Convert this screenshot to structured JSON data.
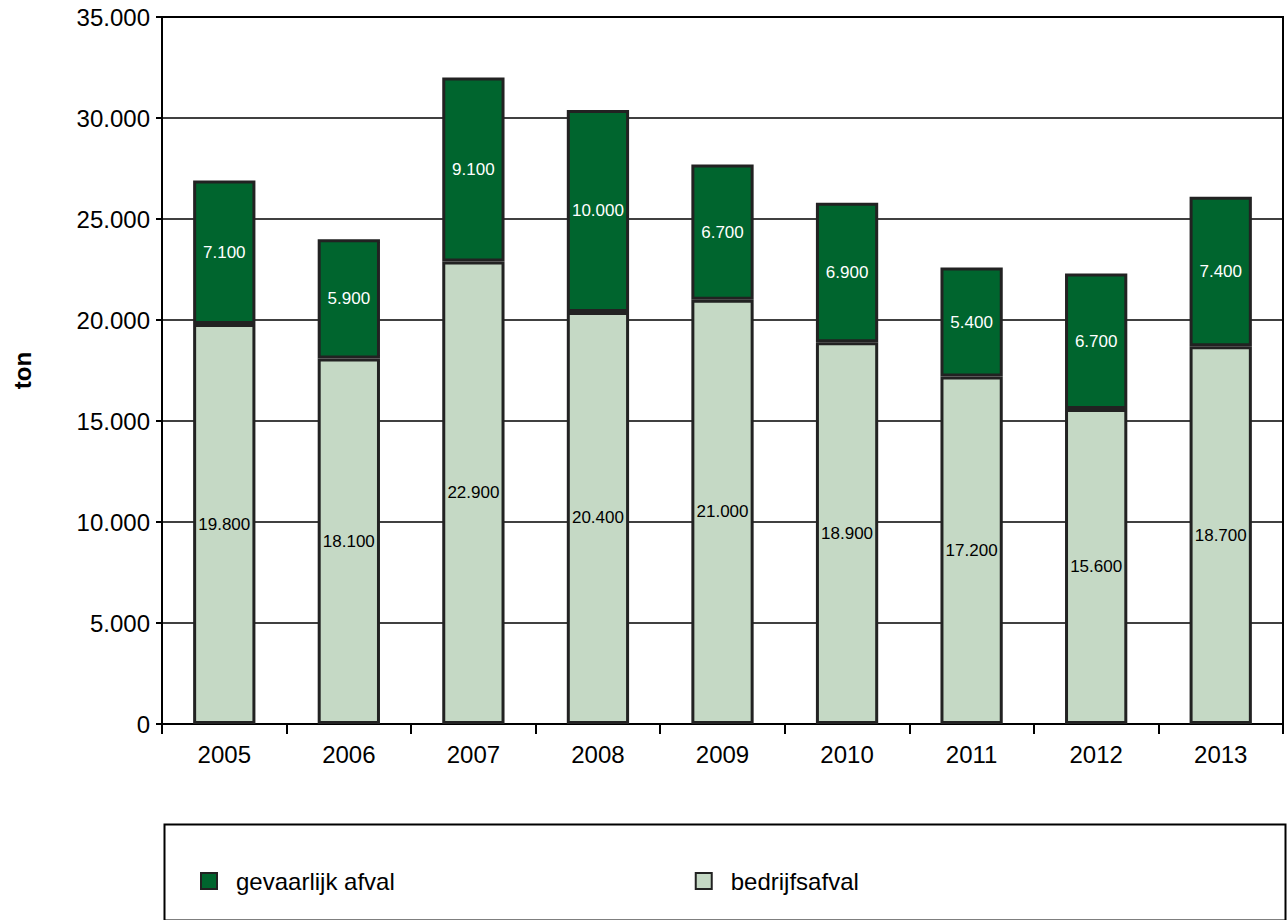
{
  "chart_data": {
    "type": "bar",
    "categories": [
      "2005",
      "2006",
      "2007",
      "2008",
      "2009",
      "2010",
      "2011",
      "2012",
      "2013"
    ],
    "series": [
      {
        "name": "gevaarlijk afval",
        "color": "#00652e",
        "values": [
          7100,
          5900,
          9100,
          10000,
          6700,
          6900,
          5400,
          6700,
          7400
        ],
        "value_labels": [
          "7.100",
          "5.900",
          "9.100",
          "10.000",
          "6.700",
          "6.900",
          "5.400",
          "6.700",
          "7.400"
        ]
      },
      {
        "name": "bedrijfsafval",
        "color": "#c5d9c5",
        "values": [
          19800,
          18100,
          22900,
          20400,
          21000,
          18900,
          17200,
          15600,
          18700
        ],
        "value_labels": [
          "19.800",
          "18.100",
          "22.900",
          "20.400",
          "21.000",
          "18.900",
          "17.200",
          "15.600",
          "18.700"
        ]
      }
    ],
    "y_label": "ton",
    "ylim": [
      0,
      35000
    ],
    "yticks": [
      0,
      {
        "value": 5000,
        "label": "5.000"
      },
      {
        "value": 10000,
        "label": "10.000"
      },
      {
        "value": 15000,
        "label": "15.000"
      },
      {
        "value": 20000,
        "label": "20.000"
      },
      {
        "value": 25000,
        "label": "25.000"
      },
      {
        "value": 30000,
        "label": "30.000"
      },
      {
        "value": 35000,
        "label": "35.000"
      }
    ],
    "stacked": true,
    "data_labels": true,
    "grid": true,
    "legend": "bottom"
  }
}
